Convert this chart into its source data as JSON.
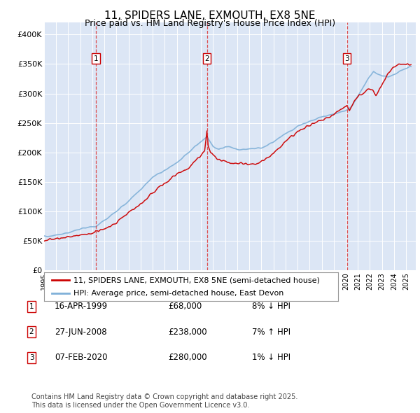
{
  "title": "11, SPIDERS LANE, EXMOUTH, EX8 5NE",
  "subtitle": "Price paid vs. HM Land Registry's House Price Index (HPI)",
  "title_fontsize": 11,
  "subtitle_fontsize": 9,
  "ylim": [
    0,
    420000
  ],
  "yticks": [
    0,
    50000,
    100000,
    150000,
    200000,
    250000,
    300000,
    350000,
    400000
  ],
  "ytick_labels": [
    "£0",
    "£50K",
    "£100K",
    "£150K",
    "£200K",
    "£250K",
    "£300K",
    "£350K",
    "£400K"
  ],
  "xlim_start": 1995.0,
  "xlim_end": 2025.8,
  "xticks": [
    1995,
    1996,
    1997,
    1998,
    1999,
    2000,
    2001,
    2002,
    2003,
    2004,
    2005,
    2006,
    2007,
    2008,
    2009,
    2010,
    2011,
    2012,
    2013,
    2014,
    2015,
    2016,
    2017,
    2018,
    2019,
    2020,
    2021,
    2022,
    2023,
    2024,
    2025
  ],
  "plot_bg_color": "#dce6f5",
  "grid_color": "#ffffff",
  "fig_bg_color": "#ffffff",
  "red_line_color": "#cc0000",
  "blue_line_color": "#7fb0d8",
  "vline_color": "#dd3333",
  "annotation_box_color": "#ffffff",
  "annotation_border_color": "#cc0000",
  "purchases": [
    {
      "label": "1",
      "year": 1999.29,
      "price": 68000
    },
    {
      "label": "2",
      "year": 2008.49,
      "price": 238000
    },
    {
      "label": "3",
      "year": 2020.09,
      "price": 280000
    }
  ],
  "legend_entries": [
    "11, SPIDERS LANE, EXMOUTH, EX8 5NE (semi-detached house)",
    "HPI: Average price, semi-detached house, East Devon"
  ],
  "footer_text": "Contains HM Land Registry data © Crown copyright and database right 2025.\nThis data is licensed under the Open Government Licence v3.0.",
  "table_rows": [
    {
      "num": "1",
      "date": "16-APR-1999",
      "price": "£68,000",
      "pct": "8% ↓ HPI"
    },
    {
      "num": "2",
      "date": "27-JUN-2008",
      "price": "£238,000",
      "pct": "7% ↑ HPI"
    },
    {
      "num": "3",
      "date": "07-FEB-2020",
      "price": "£280,000",
      "pct": "1% ↓ HPI"
    }
  ]
}
